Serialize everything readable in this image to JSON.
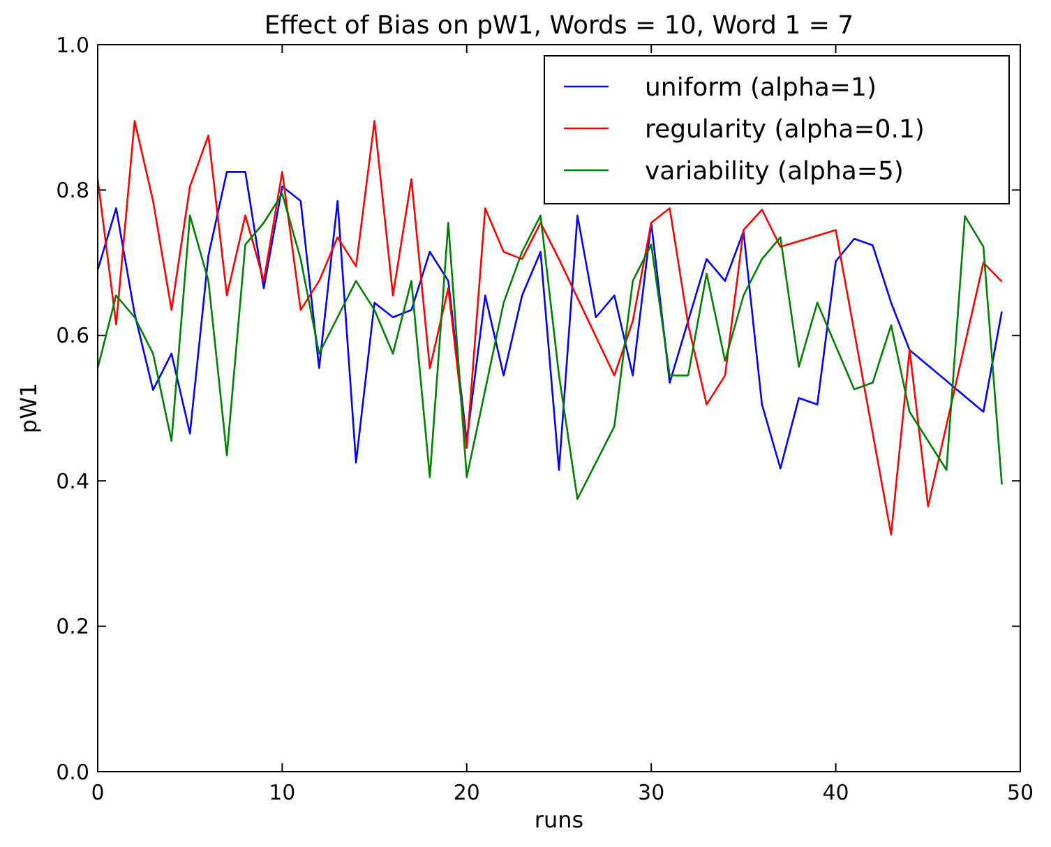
{
  "chart_data": {
    "type": "line",
    "title": "Effect of Bias on pW1, Words = 10, Word 1 = 7",
    "xlabel": "runs",
    "ylabel": "pW1",
    "x": [
      0,
      1,
      2,
      3,
      4,
      5,
      6,
      7,
      8,
      9,
      10,
      11,
      12,
      13,
      14,
      15,
      16,
      17,
      18,
      19,
      20,
      21,
      22,
      23,
      24,
      25,
      26,
      27,
      28,
      29,
      30,
      31,
      32,
      33,
      34,
      35,
      36,
      37,
      38,
      39,
      40,
      41,
      42,
      43,
      44,
      45,
      46,
      47,
      48,
      49
    ],
    "xlim": [
      0,
      50
    ],
    "xticks": [
      0,
      10,
      20,
      30,
      40,
      50
    ],
    "ylim": [
      0,
      1
    ],
    "yticks": [
      {
        "value": 0,
        "label": "0.0"
      },
      {
        "value": 0.2,
        "label": "0.2"
      },
      {
        "value": 0.4,
        "label": "0.4"
      },
      {
        "value": 0.6,
        "label": "0.6"
      },
      {
        "value": 0.8,
        "label": "0.8"
      },
      {
        "value": 1,
        "label": "1.0"
      }
    ],
    "grid": false,
    "legend": "top right",
    "marker": "none",
    "line_style": "solid",
    "series": [
      {
        "name": "uniform (alpha=1)",
        "color": "#0000ff",
        "values": [
          0.69,
          0.775,
          0.63,
          0.525,
          0.575,
          0.465,
          0.71,
          0.825,
          0.825,
          0.665,
          0.805,
          0.785,
          0.555,
          0.785,
          0.425,
          0.645,
          0.625,
          0.635,
          0.715,
          0.675,
          0.455,
          0.655,
          0.545,
          0.655,
          0.715,
          0.415,
          0.765,
          0.625,
          0.655,
          0.545,
          0.755,
          0.535,
          null,
          0.705,
          0.675,
          0.743,
          0.505,
          0.417,
          0.514,
          0.505,
          0.702,
          0.733,
          0.724,
          0.645,
          0.58,
          null,
          null,
          null,
          0.495,
          0.633
        ]
      },
      {
        "name": "regularity (alpha=0.1)",
        "color": "#ff0000",
        "values": [
          0.815,
          0.615,
          0.895,
          0.785,
          0.635,
          0.805,
          0.875,
          0.655,
          0.765,
          0.675,
          0.825,
          0.635,
          0.675,
          0.735,
          0.695,
          0.895,
          0.655,
          0.815,
          0.555,
          0.665,
          0.445,
          0.775,
          0.715,
          0.705,
          0.755,
          0.705,
          null,
          null,
          0.545,
          0.62,
          0.755,
          0.775,
          0.615,
          0.505,
          0.545,
          0.745,
          0.773,
          0.722,
          null,
          null,
          0.745,
          null,
          null,
          0.326,
          0.58,
          0.365,
          null,
          null,
          0.7,
          0.674
        ]
      },
      {
        "name": "variability (alpha=5)",
        "color": "#008000",
        "values": [
          0.555,
          0.655,
          0.625,
          0.575,
          0.455,
          0.765,
          0.675,
          0.435,
          0.725,
          0.755,
          0.795,
          0.705,
          0.575,
          0.625,
          0.675,
          0.635,
          0.575,
          0.675,
          0.405,
          0.755,
          0.405,
          0.525,
          0.645,
          0.715,
          0.765,
          0.545,
          0.375,
          null,
          0.475,
          0.675,
          0.725,
          0.545,
          0.545,
          0.685,
          0.565,
          0.655,
          0.705,
          0.735,
          0.557,
          0.645,
          null,
          0.526,
          0.535,
          0.614,
          0.495,
          null,
          0.415,
          0.764,
          0.722,
          0.395
        ]
      }
    ]
  }
}
